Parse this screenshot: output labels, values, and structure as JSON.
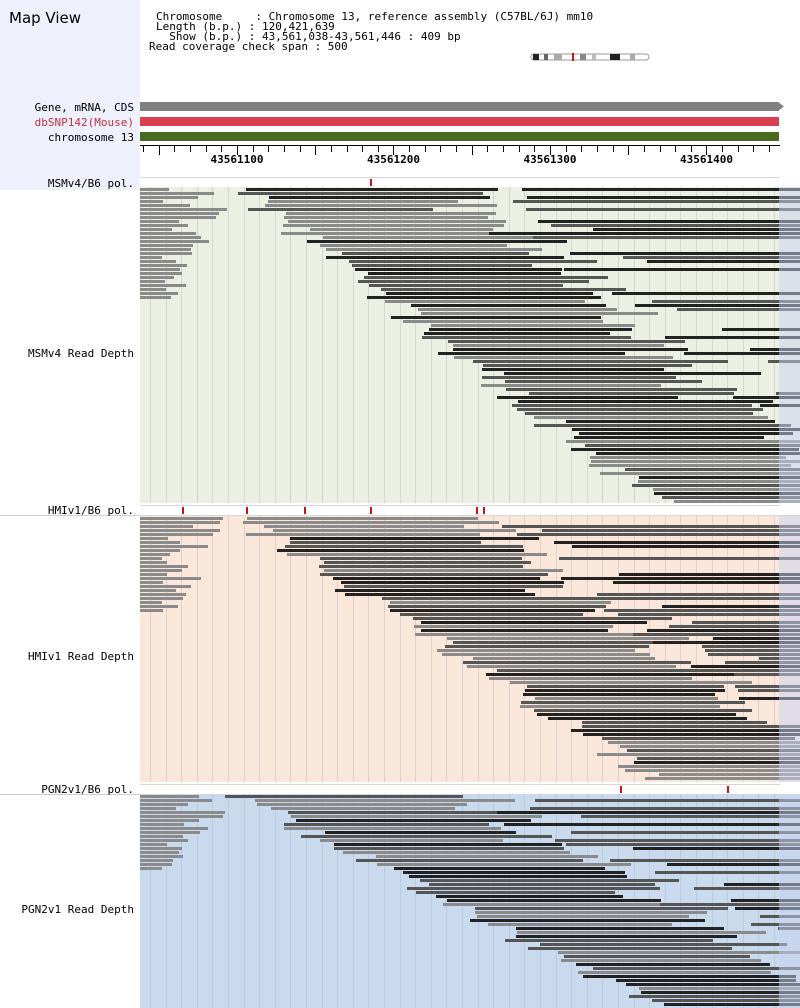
{
  "header": {
    "title": "Map View",
    "info_lines": [
      "Chromosome     : Chromosome 13, reference assembly (C57BL/6J) mm10",
      "Length (b.p.) : 120,421,639",
      "  Show (b.p.) : 43,561,038-43,561,446 : 409 bp",
      "Read coverage check span : 500"
    ]
  },
  "annotation_tracks": [
    {
      "label": "Gene, mRNA, CDS",
      "color": "#808080"
    },
    {
      "label": "dbSNP142(Mouse)",
      "color": "#d8404f"
    },
    {
      "label": "chromosome 13",
      "color": "#4a6a22"
    }
  ],
  "ruler": {
    "start": 43561038,
    "end": 43561446,
    "labels": [
      "43561100",
      "43561200",
      "43561300",
      "43561400"
    ]
  },
  "samples": [
    {
      "pol_label": "MSMv4/B6 pol.",
      "depth_label": "MSMv4 Read Depth",
      "bg": "#ebf0e2",
      "snps": [
        43561185
      ]
    },
    {
      "pol_label": "HMIv1/B6 pol.",
      "depth_label": "HMIv1 Read Depth",
      "bg": "#fbe7da",
      "snps": [
        43561065,
        43561106,
        43561143,
        43561185,
        43561253,
        43561257
      ]
    },
    {
      "pol_label": "PGN2v1/B6 pol.",
      "depth_label": "PGN2v1 Read Depth",
      "bg": "#c9d9ee",
      "snps": [
        43561345,
        43561413
      ]
    }
  ],
  "colors": {
    "read_dark": "#222222",
    "read_mid": "#555555",
    "read_light": "#8a8a8a",
    "snp": "#cc1111"
  }
}
